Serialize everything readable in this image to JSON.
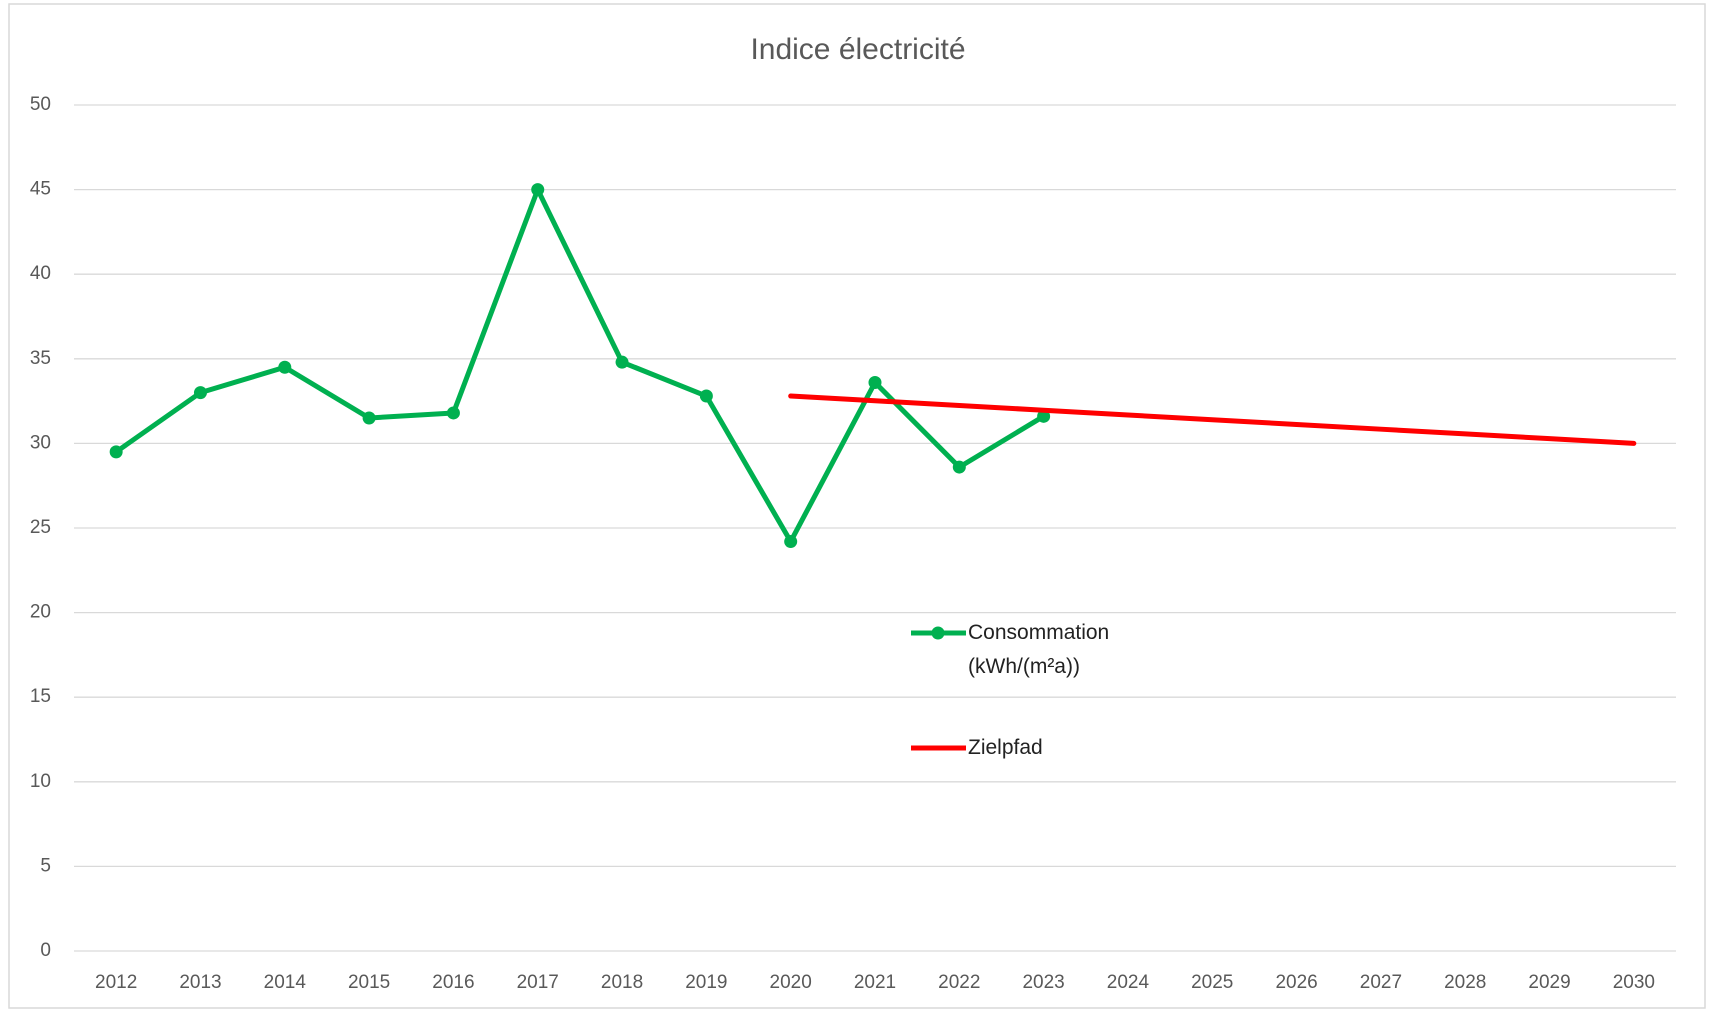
{
  "chart_data": {
    "type": "line",
    "title": "Indice électricité",
    "categories": [
      "2012",
      "2013",
      "2014",
      "2015",
      "2016",
      "2017",
      "2018",
      "2019",
      "2020",
      "2021",
      "2022",
      "2023",
      "2024",
      "2025",
      "2026",
      "2027",
      "2028",
      "2029",
      "2030"
    ],
    "series": [
      {
        "name": "Consommation (kWh/(m²a))",
        "color": "#00b050",
        "markers": true,
        "values": [
          29.5,
          33,
          34.5,
          31.5,
          31.8,
          45,
          34.8,
          32.8,
          24.2,
          33.6,
          28.6,
          31.6,
          null,
          null,
          null,
          null,
          null,
          null,
          null
        ]
      },
      {
        "name": "Zielpfad",
        "color": "#ff0000",
        "markers": false,
        "values": [
          null,
          null,
          null,
          null,
          null,
          null,
          null,
          null,
          32.8,
          32.52,
          32.24,
          31.96,
          31.68,
          31.4,
          31.12,
          30.84,
          30.56,
          30.28,
          30
        ]
      }
    ],
    "ylim": [
      0,
      50
    ],
    "yticks": [
      0,
      5,
      10,
      15,
      20,
      25,
      30,
      35,
      40,
      45,
      50
    ],
    "grid": true
  }
}
